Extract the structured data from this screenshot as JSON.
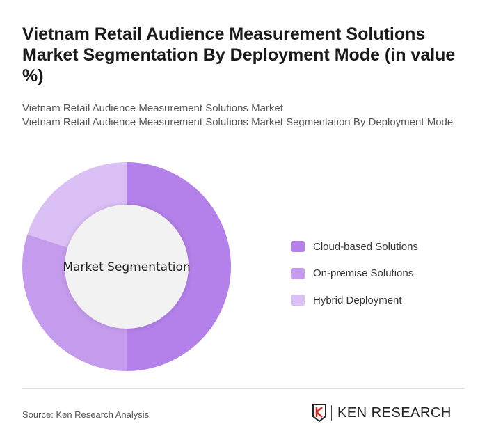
{
  "title": "Vietnam Retail Audience Measurement Solutions Market Segmentation By Deployment Mode (in value %)",
  "subtitle_line1": "Vietnam Retail Audience Measurement Solutions Market",
  "subtitle_line2": "Vietnam Retail Audience Measurement Solutions Market Segmentation By Deployment Mode",
  "source": "Source: Ken Research Analysis",
  "logo_text": "KEN RESEARCH",
  "chart_data": {
    "type": "pie",
    "donut": true,
    "center_label": "Market Segmentation",
    "categories": [
      "Cloud-based Solutions",
      "On-premise Solutions",
      "Hybrid Deployment"
    ],
    "values": [
      50,
      30,
      20
    ],
    "colors": [
      "#b480ea",
      "#c59ced",
      "#dbc0f5"
    ],
    "legend_position": "right"
  }
}
